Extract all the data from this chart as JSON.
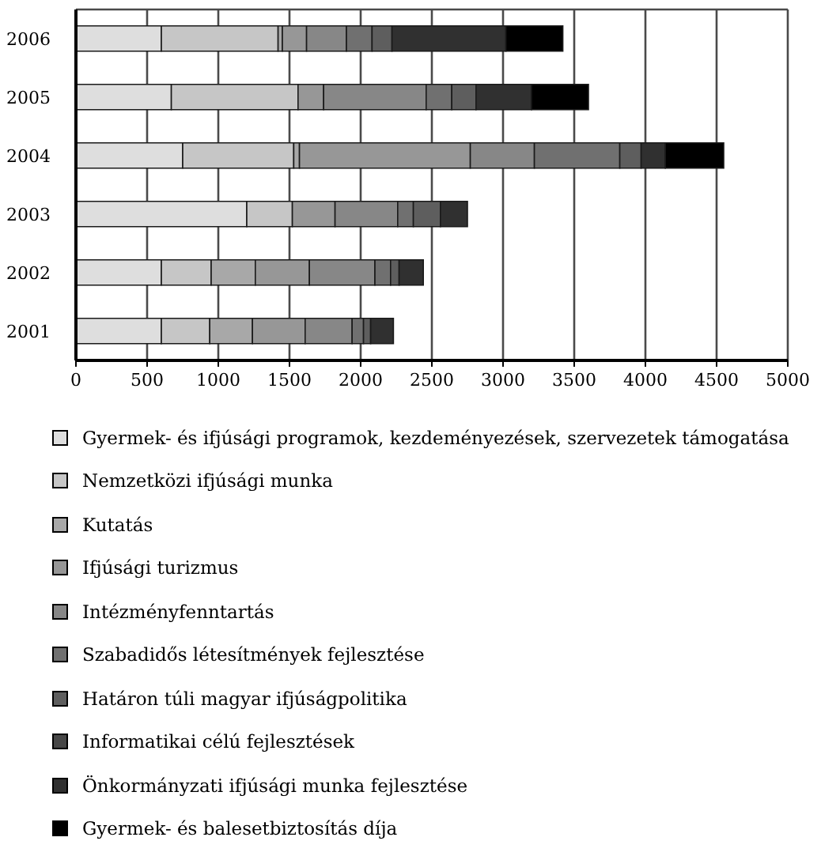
{
  "chart_data": {
    "type": "bar",
    "orientation": "horizontal",
    "stacked": true,
    "categories": [
      "2006",
      "2005",
      "2004",
      "2003",
      "2002",
      "2001"
    ],
    "series": [
      {
        "name": "Gyermek- és ifjúsági programok, kezdeményezések, szervezetek támogatása",
        "color": "#dedede",
        "values": [
          600,
          670,
          750,
          1200,
          600,
          600
        ]
      },
      {
        "name": "Nemzetközi ifjúsági munka",
        "color": "#c6c6c6",
        "values": [
          820,
          890,
          780,
          320,
          350,
          340
        ]
      },
      {
        "name": "Kutatás",
        "color": "#a8a8a8",
        "values": [
          30,
          0,
          40,
          0,
          310,
          300
        ]
      },
      {
        "name": "Ifjúsági turizmus",
        "color": "#979797",
        "values": [
          170,
          180,
          1200,
          300,
          380,
          370
        ]
      },
      {
        "name": "Intézményfenntartás",
        "color": "#878787",
        "values": [
          280,
          720,
          450,
          440,
          460,
          330
        ]
      },
      {
        "name": "Szabadidős létesítmények fejlesztése",
        "color": "#707070",
        "values": [
          180,
          180,
          600,
          110,
          110,
          80
        ]
      },
      {
        "name": "Határon túli magyar ifjúságpolitika",
        "color": "#5e5e5e",
        "values": [
          140,
          170,
          150,
          190,
          60,
          50
        ]
      },
      {
        "name": "Informatikai célú fejlesztések",
        "color": "#474747",
        "values": [
          0,
          0,
          0,
          0,
          0,
          0
        ]
      },
      {
        "name": "Önkormányzati ifjúsági munka fejlesztése",
        "color": "#303030",
        "values": [
          800,
          390,
          170,
          190,
          170,
          160
        ]
      },
      {
        "name": "Gyermek- és balesetbiztosítás díja",
        "color": "#000000",
        "values": [
          400,
          400,
          410,
          0,
          0,
          0
        ]
      }
    ],
    "xlim": [
      0,
      5000
    ],
    "xticks": [
      0,
      500,
      1000,
      1500,
      2000,
      2500,
      3000,
      3500,
      4000,
      4500,
      5000
    ],
    "grid": "x",
    "legend": "bottom"
  }
}
